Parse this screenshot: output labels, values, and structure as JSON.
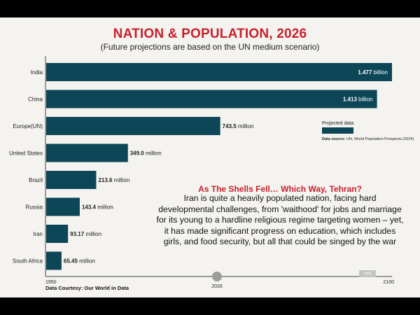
{
  "chart_data": {
    "type": "bar",
    "orientation": "horizontal",
    "title": "NATION & POPULATION, 2026",
    "subtitle": "(Future projections are based on the UN medium scenario)",
    "categories": [
      "India",
      "China",
      "Europe(UN)",
      "United States",
      "Brazil",
      "Russia",
      "Iran",
      "South Africa"
    ],
    "values": [
      1477,
      1413,
      743.5,
      349.0,
      213.6,
      143.4,
      93.17,
      65.45
    ],
    "value_unit": "million",
    "value_labels": [
      {
        "num": "1.477",
        "unit": "billion"
      },
      {
        "num": "1.413",
        "unit": "billion"
      },
      {
        "num": "743.5",
        "unit": "million"
      },
      {
        "num": "349.0",
        "unit": "million"
      },
      {
        "num": "213.6",
        "unit": "million"
      },
      {
        "num": "143.4",
        "unit": "million"
      },
      {
        "num": "93.17",
        "unit": "million"
      },
      {
        "num": "65.45",
        "unit": "million"
      }
    ],
    "xlim": [
      0,
      1477
    ],
    "legend": {
      "label": "Projected data",
      "color": "#0d4657",
      "position": "right"
    },
    "bar_color": "#0d4657",
    "grid": false
  },
  "timeline": {
    "start": "1950",
    "marker": "2026",
    "end": "2100"
  },
  "source": {
    "label": "Data source:",
    "text": "UN, World Population Prospects (2024)"
  },
  "annotation": {
    "heading": "As The Shells Fell… Which Way, Tehran?",
    "body": "Iran is quite a heavily populated nation, facing hard developmental challenges, from 'waithood' for jobs and marriage for its young to a hardline religious regime targeting women – yet, it has made significant progress on education, which includes girls, and food security, but all that could be singed by the war"
  },
  "credit": "Data Courtesy: Our World in Data",
  "tag": "India",
  "colors": {
    "title": "#c8202c",
    "bar": "#0d4657",
    "background": "#f4f3ef",
    "frame": "#000000"
  }
}
